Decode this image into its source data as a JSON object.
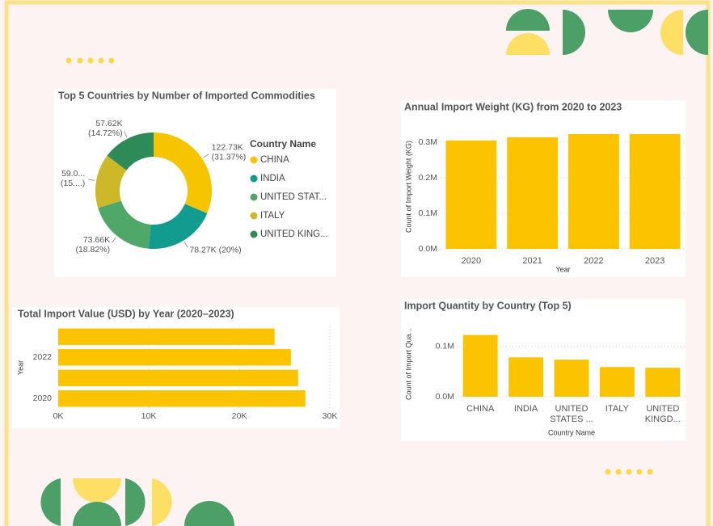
{
  "chart_data": [
    {
      "type": "donut",
      "title": "Top 5 Countries by Number of Imported Commodities",
      "legend_title": "Country Name",
      "categories": [
        "CHINA",
        "INDIA",
        "UNITED STAT...",
        "ITALY",
        "UNITED KING..."
      ],
      "values": [
        122730,
        78270,
        73660,
        59000,
        57620
      ],
      "value_labels": [
        [
          "122.73K",
          "(31.37%)"
        ],
        [
          "78.27K (20%)"
        ],
        [
          "73.66K",
          "(18.82%)"
        ],
        [
          "59.0...",
          "(15....)"
        ],
        [
          "57.62K",
          "(14.72%)"
        ]
      ],
      "colors": [
        "#f6c400",
        "#119c8f",
        "#4fa86a",
        "#cdb82a",
        "#2e8a57"
      ]
    },
    {
      "type": "bar",
      "title": "Annual Import Weight (KG) from 2020 to 2023",
      "x_label": "Year",
      "y_label": "Count of Import Weight (KG)",
      "categories": [
        "2020",
        "2021",
        "2022",
        "2023"
      ],
      "values": [
        305000,
        314000,
        323000,
        323000
      ],
      "color": "#fcc400",
      "ylim": [
        0,
        350000
      ],
      "yticks": [
        {
          "value": 0,
          "label": "0.0M"
        },
        {
          "value": 100000,
          "label": "0.1M"
        },
        {
          "value": 200000,
          "label": "0.2M"
        },
        {
          "value": 300000,
          "label": "0.3M"
        }
      ],
      "grid": true
    },
    {
      "type": "barh",
      "title": "Total Import Value (USD) by Year (2020–2023)",
      "y_label": "Year",
      "categories": [
        null,
        "2022",
        null,
        "2020"
      ],
      "values": [
        23900,
        25700,
        26500,
        27300
      ],
      "color": "#fcc400",
      "xlim": [
        0,
        30000
      ],
      "xticks": [
        {
          "value": 0,
          "label": "0K"
        },
        {
          "value": 10000,
          "label": "10K"
        },
        {
          "value": 20000,
          "label": "20K"
        },
        {
          "value": 30000,
          "label": "30K"
        }
      ],
      "grid": true
    },
    {
      "type": "bar",
      "title": "Import Quantity by Country (Top 5)",
      "x_label": "Country Name",
      "y_label": "Count of Import Qua...",
      "categories": [
        "CHINA",
        "INDIA",
        "UNITED STATES ...",
        "ITALY",
        "UNITED KINGD..."
      ],
      "values": [
        122730,
        78270,
        73660,
        59000,
        57620
      ],
      "color": "#fcc400",
      "ylim": [
        0,
        130000
      ],
      "yticks": [
        {
          "value": 0,
          "label": "0.0M"
        },
        {
          "value": 100000,
          "label": "0.1M"
        }
      ],
      "grid": true
    }
  ]
}
